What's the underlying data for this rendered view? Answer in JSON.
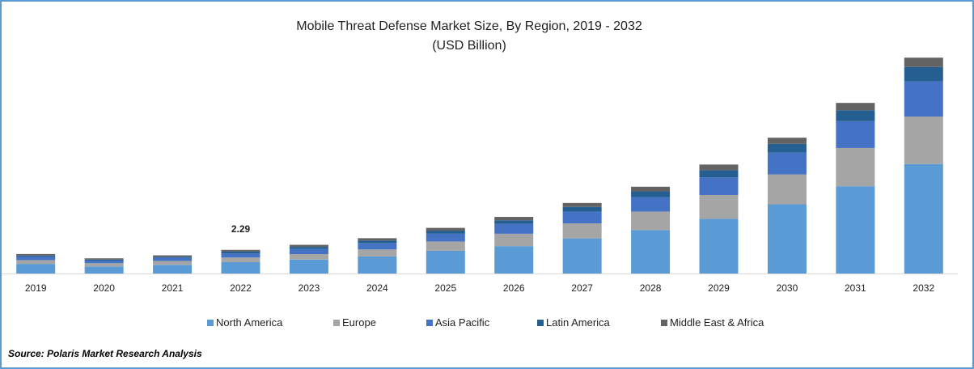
{
  "chart_data": {
    "type": "bar",
    "stacked": true,
    "title": "Mobile Threat Defense Market Size, By Region, 2019 - 2032",
    "subtitle": "(USD Billion)",
    "xlabel": "",
    "ylabel": "",
    "ylim": [
      0,
      21
    ],
    "grid": false,
    "legend_position": "bottom",
    "categories": [
      "2019",
      "2020",
      "2021",
      "2022",
      "2023",
      "2024",
      "2025",
      "2026",
      "2027",
      "2028",
      "2029",
      "2030",
      "2031",
      "2032"
    ],
    "series": [
      {
        "name": "North America",
        "color": "#5b9bd5",
        "values": [
          0.93,
          0.68,
          0.84,
          1.1,
          1.35,
          1.65,
          2.2,
          2.65,
          3.4,
          4.2,
          5.3,
          6.7,
          8.45,
          10.6
        ]
      },
      {
        "name": "Europe",
        "color": "#a5a5a5",
        "values": [
          0.37,
          0.32,
          0.38,
          0.45,
          0.53,
          0.68,
          0.9,
          1.2,
          1.45,
          1.8,
          2.3,
          2.9,
          3.7,
          4.6
        ]
      },
      {
        "name": "Asia Pacific",
        "color": "#4472c4",
        "values": [
          0.32,
          0.25,
          0.3,
          0.4,
          0.5,
          0.62,
          0.75,
          0.95,
          1.15,
          1.4,
          1.7,
          2.1,
          2.6,
          3.4
        ]
      },
      {
        "name": "Latin America",
        "color": "#255e91",
        "values": [
          0.12,
          0.1,
          0.1,
          0.17,
          0.2,
          0.25,
          0.3,
          0.35,
          0.45,
          0.55,
          0.7,
          0.85,
          1.05,
          1.4
        ]
      },
      {
        "name": "Middle East & Africa",
        "color": "#636363",
        "values": [
          0.15,
          0.12,
          0.14,
          0.17,
          0.2,
          0.22,
          0.27,
          0.33,
          0.38,
          0.45,
          0.55,
          0.6,
          0.72,
          0.9
        ]
      }
    ],
    "annotations": [
      {
        "category": "2022",
        "label": "2.29"
      }
    ]
  },
  "source": "Source: Polaris  Market Research Analysis"
}
